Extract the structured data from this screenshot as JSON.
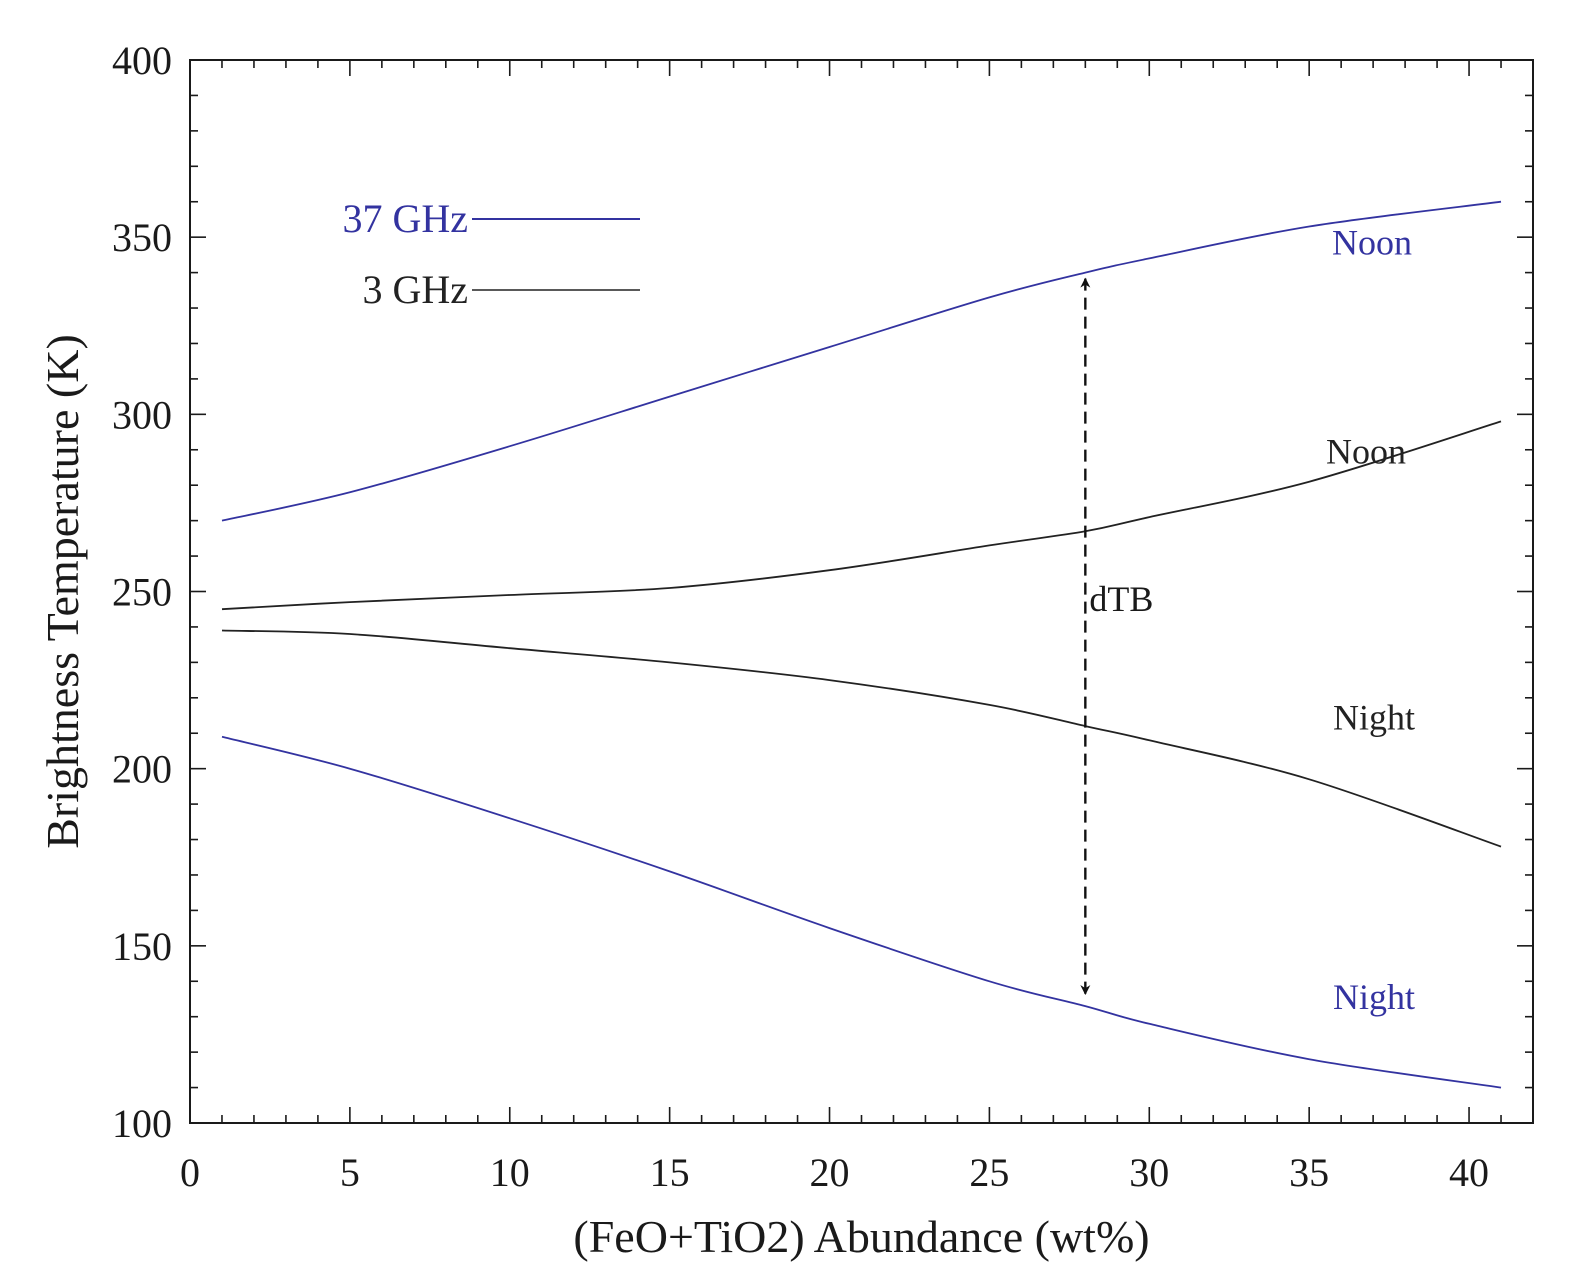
{
  "chart_data": {
    "type": "line",
    "xlabel": "(FeO+TiO2) Abundance (wt%)",
    "ylabel": "Brightness Temperature (K)",
    "xlim": [
      0,
      42
    ],
    "ylim": [
      100,
      400
    ],
    "xticks": [
      0,
      5,
      10,
      15,
      20,
      25,
      30,
      35,
      40
    ],
    "yticks": [
      100,
      150,
      200,
      250,
      300,
      350,
      400
    ],
    "colors": {
      "ghz37": "#3333a0",
      "ghz3": "#222222",
      "axis": "#1a1a1a"
    },
    "legend": [
      {
        "label": "37 GHz",
        "color": "#3333a0"
      },
      {
        "label": "3 GHz",
        "color": "#222222"
      }
    ],
    "series": [
      {
        "name": "37 GHz Noon",
        "frequency": "37 GHz",
        "label": "Noon",
        "color": "#3333a0",
        "x": [
          1,
          5,
          10,
          15,
          20,
          25,
          28,
          30,
          35,
          41
        ],
        "y": [
          270,
          278,
          291,
          305,
          319,
          333,
          340,
          344,
          353,
          360
        ]
      },
      {
        "name": "3 GHz Noon",
        "frequency": "3 GHz",
        "label": "Noon",
        "color": "#222222",
        "x": [
          1,
          5,
          10,
          15,
          20,
          25,
          28,
          30,
          35,
          41
        ],
        "y": [
          245,
          247,
          249,
          251,
          256,
          263,
          267,
          271,
          281,
          298
        ]
      },
      {
        "name": "3 GHz Night",
        "frequency": "3 GHz",
        "label": "Night",
        "color": "#222222",
        "x": [
          1,
          5,
          10,
          15,
          20,
          25,
          28,
          30,
          35,
          41
        ],
        "y": [
          239,
          238,
          234,
          230,
          225,
          218,
          212,
          208,
          197,
          178
        ]
      },
      {
        "name": "37 GHz Night",
        "frequency": "37 GHz",
        "label": "Night",
        "color": "#3333a0",
        "x": [
          1,
          5,
          10,
          15,
          20,
          25,
          28,
          30,
          35,
          41
        ],
        "y": [
          209,
          200,
          186,
          171,
          155,
          140,
          133,
          128,
          118,
          110
        ]
      }
    ],
    "annotations": [
      {
        "text": "dTB",
        "type": "double-arrow-dashed",
        "x": 28,
        "y_from": 340,
        "y_to": 133
      }
    ]
  }
}
